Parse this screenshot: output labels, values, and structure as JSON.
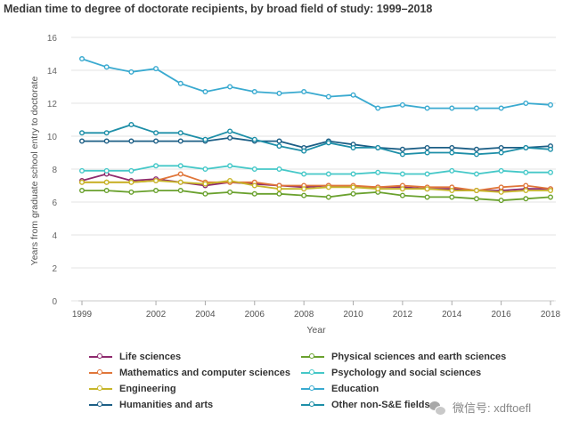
{
  "chart_data": {
    "type": "line",
    "title": "Median time to degree of doctorate recipients, by broad field of study: 1999–2018",
    "xlabel": "Year",
    "ylabel": "Years from graduate school entry to doctorate",
    "xlim": [
      1999,
      2018
    ],
    "ylim": [
      0,
      16
    ],
    "x_ticks": [
      "1999",
      "2002",
      "2004",
      "2006",
      "2008",
      "2010",
      "2012",
      "2014",
      "2016",
      "2018"
    ],
    "y_ticks": [
      "0",
      "2",
      "4",
      "6",
      "8",
      "10",
      "12",
      "14",
      "16"
    ],
    "grid": "horizontal",
    "legend_position": "bottom",
    "x": [
      1999,
      2000,
      2001,
      2002,
      2003,
      2004,
      2005,
      2006,
      2007,
      2008,
      2009,
      2010,
      2011,
      2012,
      2013,
      2014,
      2015,
      2016,
      2017,
      2018
    ],
    "series": [
      {
        "name": "Life sciences",
        "color": "#8e2a6e",
        "values": [
          7.3,
          7.7,
          7.3,
          7.4,
          7.2,
          7.0,
          7.2,
          7.1,
          7.0,
          6.9,
          7.0,
          6.9,
          6.9,
          6.9,
          6.8,
          6.8,
          6.7,
          6.7,
          6.8,
          6.8
        ]
      },
      {
        "name": "Physical sciences and earth sciences",
        "color": "#6aa12e",
        "values": [
          6.7,
          6.7,
          6.6,
          6.7,
          6.7,
          6.5,
          6.6,
          6.5,
          6.5,
          6.4,
          6.3,
          6.5,
          6.6,
          6.4,
          6.3,
          6.3,
          6.2,
          6.1,
          6.2,
          6.3
        ]
      },
      {
        "name": "Mathematics and computer sciences",
        "color": "#e0763a",
        "values": [
          7.2,
          7.2,
          7.2,
          7.3,
          7.7,
          7.2,
          7.2,
          7.2,
          7.0,
          7.0,
          7.0,
          7.0,
          6.9,
          7.0,
          6.9,
          6.9,
          6.7,
          6.9,
          7.0,
          6.8
        ]
      },
      {
        "name": "Psychology and social sciences",
        "color": "#45c8c8",
        "values": [
          7.9,
          7.9,
          7.9,
          8.2,
          8.2,
          8.0,
          8.2,
          8.0,
          8.0,
          7.7,
          7.7,
          7.7,
          7.8,
          7.7,
          7.7,
          7.9,
          7.7,
          7.9,
          7.8,
          7.8
        ]
      },
      {
        "name": "Engineering",
        "color": "#c7b62a",
        "values": [
          7.2,
          7.2,
          7.2,
          7.3,
          7.2,
          7.1,
          7.3,
          7.0,
          6.8,
          6.8,
          6.9,
          6.9,
          6.8,
          6.8,
          6.8,
          6.7,
          6.7,
          6.6,
          6.7,
          6.7
        ]
      },
      {
        "name": "Education",
        "color": "#3aaad0",
        "values": [
          14.7,
          14.2,
          13.9,
          14.1,
          13.2,
          12.7,
          13.0,
          12.7,
          12.6,
          12.7,
          12.4,
          12.5,
          11.7,
          11.9,
          11.7,
          11.7,
          11.7,
          11.7,
          12.0,
          11.9
        ]
      },
      {
        "name": "Humanities and arts",
        "color": "#1d5f86",
        "values": [
          9.7,
          9.7,
          9.7,
          9.7,
          9.7,
          9.7,
          9.9,
          9.7,
          9.7,
          9.3,
          9.7,
          9.5,
          9.3,
          9.2,
          9.3,
          9.3,
          9.2,
          9.3,
          9.3,
          9.4
        ]
      },
      {
        "name": "Other non-S&E fields",
        "color": "#1e8fa8",
        "values": [
          10.2,
          10.2,
          10.7,
          10.2,
          10.2,
          9.8,
          10.3,
          9.8,
          9.4,
          9.1,
          9.6,
          9.3,
          9.3,
          8.9,
          9.0,
          9.0,
          8.9,
          9.0,
          9.3,
          9.2
        ]
      }
    ]
  },
  "watermark": {
    "text": "微信号: xdftoefl",
    "icon": "wechat-icon"
  }
}
